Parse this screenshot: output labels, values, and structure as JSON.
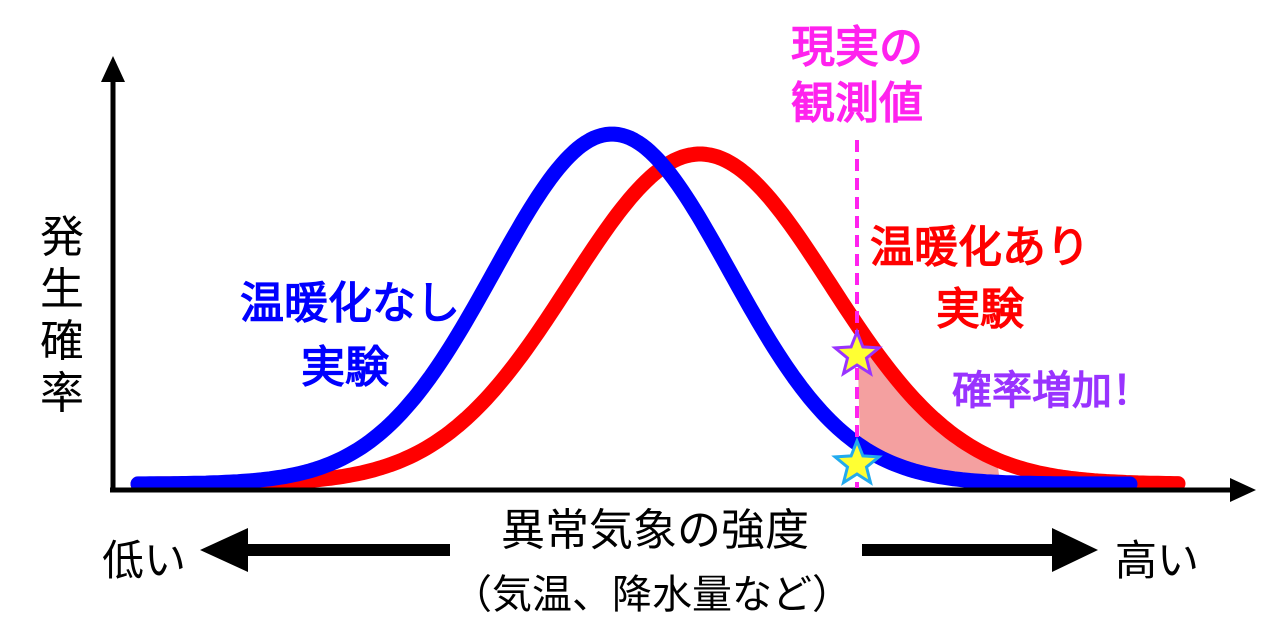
{
  "y_axis_label": [
    "発",
    "生",
    "確",
    "率"
  ],
  "x_axis": {
    "title": "異常気象の強度",
    "subtitle": "（気温、降水量など）",
    "low_label": "低い",
    "high_label": "高い"
  },
  "curves": {
    "no_warming": {
      "label_lines": [
        "温暖化なし",
        "実験"
      ],
      "color": "#0000ff"
    },
    "with_warming": {
      "label_lines": [
        "温暖化あり",
        "実験"
      ],
      "color": "#ff0000"
    }
  },
  "observation": {
    "label_lines": [
      "現実の",
      "観測値"
    ],
    "color": "#ff22ee"
  },
  "probability_increase": {
    "text": "確率増加！",
    "color": "#9933ff"
  },
  "shaded_area_color": "#f4a0a0",
  "star_colors": {
    "fill": "#ffff33",
    "stroke_top": "#9933ff",
    "stroke_bottom": "#22aaee"
  }
}
